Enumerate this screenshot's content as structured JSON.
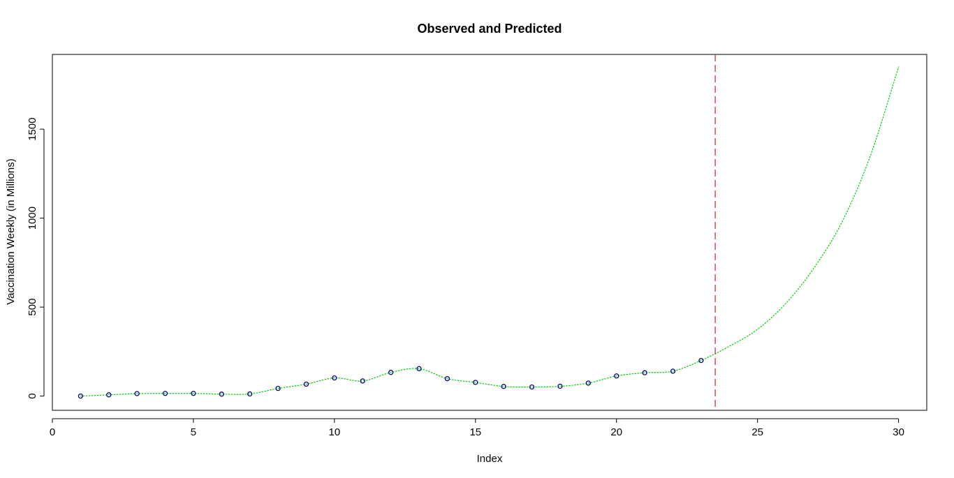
{
  "chart_data": {
    "type": "line",
    "title": "Observed and Predicted",
    "xlabel": "Index",
    "ylabel": "Vaccination Weekly (in Millions)",
    "xlim": [
      0,
      31
    ],
    "ylim": [
      -80,
      1920
    ],
    "x_ticks": [
      0,
      5,
      10,
      15,
      20,
      25,
      30
    ],
    "y_ticks": [
      0,
      500,
      1000,
      1500
    ],
    "grid": false,
    "legend": "none",
    "series": [
      {
        "kind": "observed-points",
        "color": "#00008b",
        "x": [
          1,
          2,
          3,
          4,
          5,
          6,
          7,
          8,
          9,
          10,
          11,
          12,
          13,
          14,
          15,
          16,
          17,
          18,
          19,
          20,
          21,
          22,
          23
        ],
        "y": [
          0,
          7,
          14,
          15,
          15,
          11,
          12,
          43,
          67,
          102,
          85,
          133,
          154,
          98,
          77,
          54,
          51,
          55,
          73,
          113,
          131,
          140,
          200
        ]
      },
      {
        "kind": "fitted-line",
        "color": "#00cc00",
        "style": "dotted",
        "x": [
          1,
          2,
          3,
          4,
          5,
          6,
          7,
          8,
          9,
          10,
          11,
          12,
          13,
          14,
          15,
          16,
          17,
          18,
          19,
          20,
          21,
          22,
          23,
          24,
          25,
          26,
          27,
          28,
          29,
          30
        ],
        "y": [
          0,
          7,
          14,
          15,
          15,
          11,
          12,
          43,
          67,
          102,
          85,
          133,
          154,
          98,
          77,
          54,
          51,
          55,
          73,
          113,
          131,
          140,
          200,
          280,
          375,
          520,
          720,
          980,
          1350,
          1850
        ]
      }
    ],
    "vline": {
      "x": 23.5,
      "color": "#cc3333",
      "style": "dashed"
    }
  }
}
